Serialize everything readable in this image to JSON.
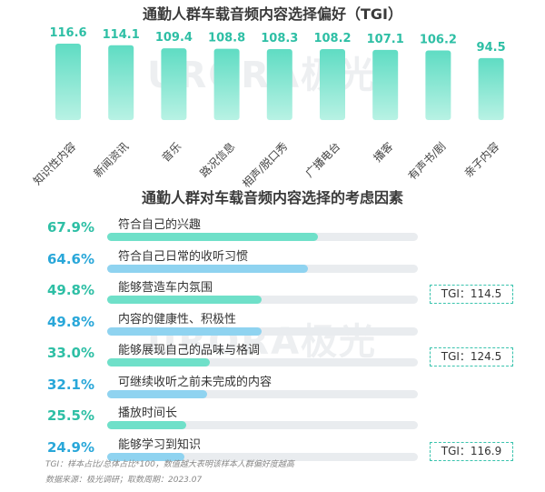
{
  "colors": {
    "teal": "#2ebfa5",
    "teal_bar_light": "#b8f2e4",
    "teal_bar_dark": "#5fdcc3",
    "blue": "#29a7d9",
    "fill_teal": "#6fe0c9",
    "fill_blue": "#8fd3f0"
  },
  "watermark": "URORA极光",
  "chart_data": [
    {
      "type": "bar",
      "title": "通勤人群车载音频内容选择偏好（TGI）",
      "categories": [
        "知识性内容",
        "新闻资讯",
        "音乐",
        "路况信息",
        "相声/脱口秀",
        "广播电台",
        "播客",
        "有声书/剧",
        "亲子内容"
      ],
      "values": [
        116.6,
        114.1,
        109.4,
        108.8,
        108.3,
        108.2,
        107.1,
        106.2,
        94.5
      ],
      "ylim": [
        0,
        125
      ],
      "grid": false,
      "legend": "none"
    },
    {
      "type": "bar",
      "orientation": "horizontal",
      "title": "通勤人群对车载音频内容选择的考虑因素",
      "categories": [
        "符合自己的兴趣",
        "符合自己日常的收听习惯",
        "能够营造车内氛围",
        "内容的健康性、积极性",
        "能够展现自己的品味与格调",
        "可继续收听之前未完成的内容",
        "播放时间长",
        "能够学习到知识"
      ],
      "values": [
        67.9,
        64.6,
        49.8,
        49.8,
        33.0,
        32.1,
        25.5,
        24.9
      ],
      "value_labels": [
        "67.9%",
        "64.6%",
        "49.8%",
        "49.8%",
        "33.0%",
        "32.1%",
        "25.5%",
        "24.9%"
      ],
      "value_colors": [
        "teal",
        "blue",
        "teal",
        "blue",
        "teal",
        "blue",
        "teal",
        "blue"
      ],
      "xlim": [
        0,
        100
      ],
      "annotations": [
        {
          "row": 2,
          "text": "TGI：114.5"
        },
        {
          "row": 4,
          "text": "TGI：124.5"
        },
        {
          "row": 7,
          "text": "TGI：116.9"
        }
      ]
    }
  ],
  "footnotes": [
    "TGI：样本占比/总体占比*100，数值越大表明该样本人群偏好度越高",
    "数据来源：极光调研；取数周期：2023.07"
  ]
}
